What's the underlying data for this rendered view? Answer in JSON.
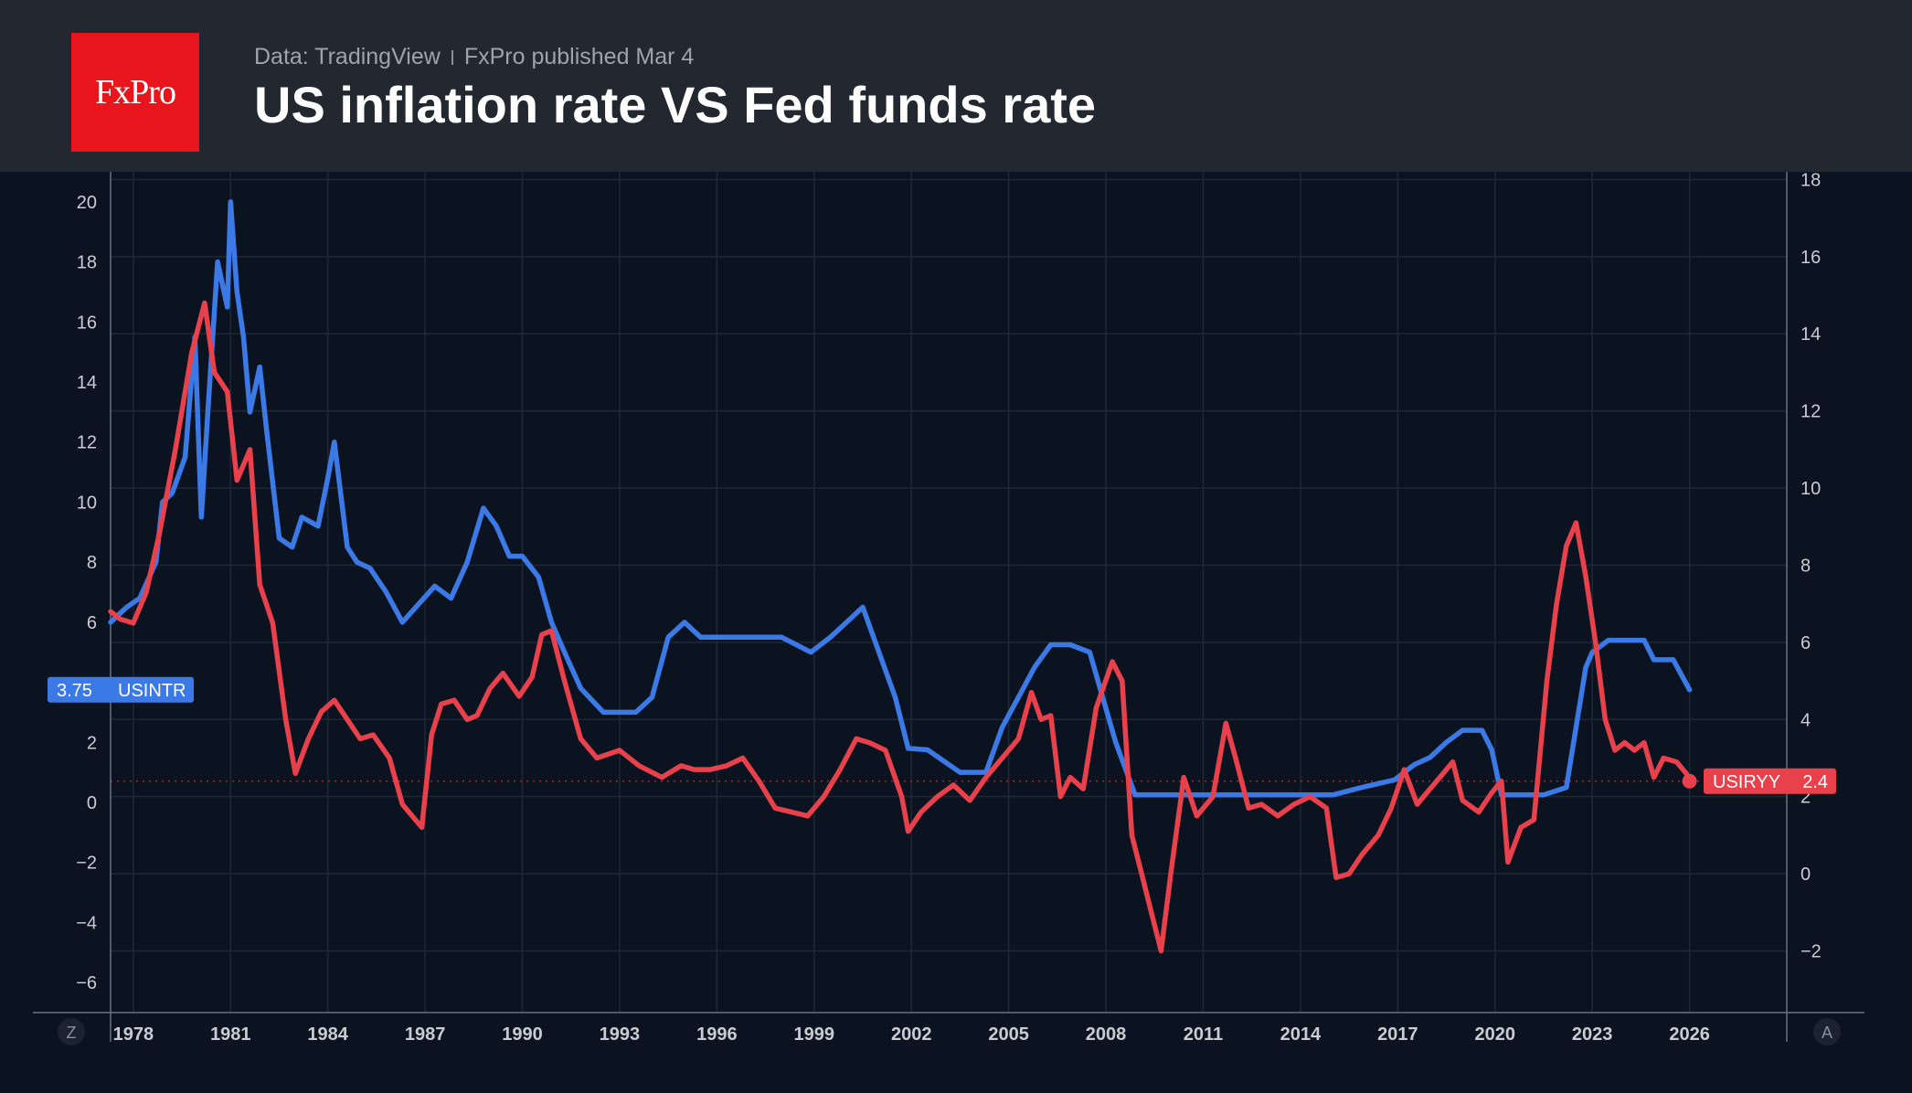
{
  "header": {
    "logo_text": "FxPro",
    "source_data": "Data: TradingView",
    "source_published": "FxPro published Mar 4",
    "title": "US inflation rate VS Fed funds rate"
  },
  "corner_buttons": {
    "left": "Z",
    "right": "A"
  },
  "chart_data": {
    "type": "line",
    "title": "US inflation rate VS Fed funds rate",
    "x_ticks": [
      "1978",
      "1981",
      "1984",
      "1987",
      "1990",
      "1993",
      "1996",
      "1999",
      "2002",
      "2005",
      "2008",
      "2011",
      "2014",
      "2017",
      "2020",
      "2023",
      "2026"
    ],
    "x_range": [
      1977.3,
      2029.0
    ],
    "left_axis": {
      "ticks": [
        "20",
        "18",
        "16",
        "14",
        "12",
        "10",
        "8",
        "6",
        "2",
        "0",
        "−2",
        "−4",
        "−6"
      ],
      "range": [
        -7.0,
        21.0
      ]
    },
    "right_axis": {
      "ticks": [
        "18",
        "16",
        "14",
        "12",
        "10",
        "8",
        "6",
        "4",
        "2",
        "0",
        "−2"
      ],
      "range": [
        -3.6,
        18.2
      ]
    },
    "grid": true,
    "series": [
      {
        "name": "USINTR",
        "axis": "left",
        "color": "#3b7ae6",
        "last_value": "3.75",
        "x": [
          1977.3,
          1977.8,
          1978.2,
          1978.7,
          1978.9,
          1979.2,
          1979.6,
          1979.9,
          1980.1,
          1980.3,
          1980.6,
          1980.9,
          1981.0,
          1981.2,
          1981.4,
          1981.6,
          1981.9,
          1982.1,
          1982.5,
          1982.9,
          1983.2,
          1983.7,
          1984.0,
          1984.2,
          1984.6,
          1984.9,
          1985.3,
          1985.8,
          1986.3,
          1986.8,
          1987.3,
          1987.8,
          1988.3,
          1988.8,
          1989.2,
          1989.6,
          1990.0,
          1990.5,
          1990.9,
          1991.3,
          1991.8,
          1992.5,
          1993.5,
          1994.0,
          1994.5,
          1995.0,
          1995.5,
          1996.0,
          1997.0,
          1998.0,
          1998.9,
          1999.5,
          2000.0,
          2000.5,
          2001.0,
          2001.5,
          2001.9,
          2002.5,
          2003.5,
          2004.3,
          2004.8,
          2005.3,
          2005.8,
          2006.3,
          2006.9,
          2007.5,
          2007.9,
          2008.3,
          2008.9,
          2009.5,
          2012.0,
          2015.0,
          2015.9,
          2016.9,
          2017.5,
          2018.0,
          2018.5,
          2019.0,
          2019.6,
          2019.9,
          2020.2,
          2021.5,
          2022.2,
          2022.5,
          2022.8,
          2023.0,
          2023.5,
          2024.0,
          2024.6,
          2024.9,
          2025.5,
          2026.0
        ],
        "values": [
          6.0,
          6.5,
          6.8,
          8.0,
          10.0,
          10.3,
          11.5,
          15.5,
          9.5,
          13.0,
          18.0,
          16.5,
          20.0,
          17.0,
          15.5,
          13.0,
          14.5,
          12.5,
          8.8,
          8.5,
          9.5,
          9.2,
          10.8,
          12.0,
          8.5,
          8.0,
          7.8,
          7.0,
          6.0,
          6.6,
          7.2,
          6.8,
          8.0,
          9.8,
          9.2,
          8.2,
          8.2,
          7.5,
          6.0,
          5.0,
          3.8,
          3.0,
          3.0,
          3.5,
          5.5,
          6.0,
          5.5,
          5.5,
          5.5,
          5.5,
          5.0,
          5.5,
          6.0,
          6.5,
          5.0,
          3.5,
          1.8,
          1.75,
          1.0,
          1.0,
          2.5,
          3.5,
          4.5,
          5.25,
          5.25,
          5.0,
          3.5,
          2.0,
          0.25,
          0.25,
          0.25,
          0.25,
          0.5,
          0.75,
          1.25,
          1.5,
          2.0,
          2.4,
          2.4,
          1.75,
          0.25,
          0.25,
          0.5,
          2.5,
          4.5,
          5.0,
          5.4,
          5.4,
          5.4,
          4.75,
          4.75,
          3.75
        ]
      },
      {
        "name": "USIRYY",
        "axis": "right",
        "color": "#e8414b",
        "last_value": "2.4",
        "x": [
          1977.3,
          1977.6,
          1978.0,
          1978.4,
          1978.8,
          1979.3,
          1979.8,
          1980.2,
          1980.5,
          1980.9,
          1981.2,
          1981.6,
          1981.9,
          1982.3,
          1982.7,
          1983.0,
          1983.4,
          1983.8,
          1984.2,
          1984.6,
          1985.0,
          1985.4,
          1985.9,
          1986.3,
          1986.6,
          1986.9,
          1987.2,
          1987.5,
          1987.9,
          1988.3,
          1988.6,
          1989.0,
          1989.4,
          1989.9,
          1990.3,
          1990.6,
          1990.9,
          1991.3,
          1991.8,
          1992.3,
          1993.0,
          1993.6,
          1994.3,
          1994.9,
          1995.3,
          1995.8,
          1996.3,
          1996.8,
          1997.3,
          1997.8,
          1998.3,
          1998.8,
          1999.3,
          1999.8,
          2000.3,
          2000.7,
          2001.2,
          2001.7,
          2001.9,
          2002.3,
          2002.8,
          2003.3,
          2003.8,
          2004.3,
          2004.8,
          2005.3,
          2005.7,
          2006.0,
          2006.3,
          2006.6,
          2006.9,
          2007.3,
          2007.7,
          2008.2,
          2008.5,
          2008.8,
          2009.1,
          2009.4,
          2009.7,
          2010.0,
          2010.4,
          2010.8,
          2011.3,
          2011.7,
          2012.0,
          2012.4,
          2012.8,
          2013.3,
          2013.8,
          2014.3,
          2014.8,
          2015.1,
          2015.5,
          2015.9,
          2016.4,
          2016.8,
          2017.2,
          2017.6,
          2017.9,
          2018.3,
          2018.7,
          2019.0,
          2019.5,
          2019.9,
          2020.2,
          2020.4,
          2020.8,
          2021.2,
          2021.6,
          2021.9,
          2022.2,
          2022.5,
          2022.8,
          2023.1,
          2023.4,
          2023.7,
          2024.0,
          2024.3,
          2024.6,
          2024.9,
          2025.2,
          2025.6,
          2025.9,
          2026.0
        ],
        "values": [
          6.8,
          6.6,
          6.5,
          7.3,
          8.8,
          11.0,
          13.5,
          14.8,
          13.0,
          12.5,
          10.2,
          11.0,
          7.5,
          6.5,
          4.0,
          2.6,
          3.5,
          4.2,
          4.5,
          4.0,
          3.5,
          3.6,
          3.0,
          1.8,
          1.5,
          1.2,
          3.6,
          4.4,
          4.5,
          4.0,
          4.1,
          4.8,
          5.2,
          4.6,
          5.1,
          6.2,
          6.3,
          5.0,
          3.5,
          3.0,
          3.2,
          2.8,
          2.5,
          2.8,
          2.7,
          2.7,
          2.8,
          3.0,
          2.4,
          1.7,
          1.6,
          1.5,
          2.0,
          2.7,
          3.5,
          3.4,
          3.2,
          2.0,
          1.1,
          1.6,
          2.0,
          2.3,
          1.9,
          2.5,
          3.0,
          3.5,
          4.7,
          4.0,
          4.1,
          2.0,
          2.5,
          2.2,
          4.3,
          5.5,
          5.0,
          1.0,
          0.0,
          -1.0,
          -2.0,
          0.0,
          2.5,
          1.5,
          2.0,
          3.9,
          3.0,
          1.7,
          1.8,
          1.5,
          1.8,
          2.0,
          1.7,
          -0.1,
          0.0,
          0.5,
          1.0,
          1.7,
          2.7,
          1.8,
          2.1,
          2.5,
          2.9,
          1.9,
          1.6,
          2.1,
          2.4,
          0.3,
          1.2,
          1.4,
          5.0,
          7.0,
          8.5,
          9.1,
          7.7,
          6.0,
          4.0,
          3.2,
          3.4,
          3.2,
          3.4,
          2.5,
          3.0,
          2.9,
          2.6,
          2.4
        ]
      }
    ]
  }
}
